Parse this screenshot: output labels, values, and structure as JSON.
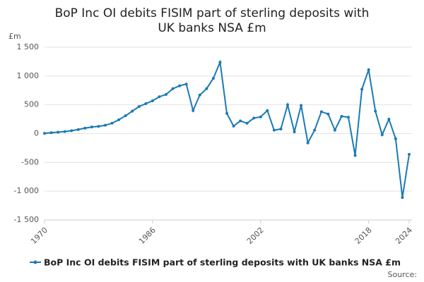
{
  "chart_data": {
    "type": "line",
    "title": "BoP Inc OI debits FISIM part of sterling deposits with UK banks NSA £m",
    "y_label": "£m",
    "source": "Source:",
    "x": [
      1970,
      1971,
      1972,
      1973,
      1974,
      1975,
      1976,
      1977,
      1978,
      1979,
      1980,
      1981,
      1982,
      1983,
      1984,
      1985,
      1986,
      1987,
      1988,
      1989,
      1990,
      1991,
      1992,
      1993,
      1994,
      1995,
      1996,
      1997,
      1998,
      1999,
      2000,
      2001,
      2002,
      2003,
      2004,
      2005,
      2006,
      2007,
      2008,
      2009,
      2010,
      2011,
      2012,
      2013,
      2014,
      2015,
      2016,
      2017,
      2018,
      2019,
      2020,
      2021,
      2022,
      2023,
      2024
    ],
    "series": [
      {
        "name": "BoP Inc OI debits FISIM part of sterling deposits with UK banks NSA £m",
        "color": "#1a7ab5",
        "values": [
          5,
          15,
          25,
          35,
          50,
          70,
          95,
          115,
          125,
          145,
          180,
          240,
          310,
          390,
          470,
          520,
          570,
          640,
          680,
          780,
          830,
          860,
          400,
          670,
          780,
          960,
          1240,
          350,
          130,
          220,
          180,
          270,
          290,
          400,
          60,
          80,
          500,
          30,
          490,
          -160,
          60,
          380,
          340,
          60,
          300,
          285,
          -380,
          770,
          1110,
          390,
          -20,
          250,
          -90,
          -1110,
          -360
        ]
      }
    ],
    "xlim": [
      1970,
      2024
    ],
    "xticks": [
      1970,
      1986,
      2002,
      2018,
      2024
    ],
    "ylim": [
      -1500,
      1500
    ],
    "yticks": [
      {
        "value": -1500,
        "label": "-1 500"
      },
      {
        "value": -1000,
        "label": "-1 000"
      },
      -500,
      0,
      500,
      {
        "value": 1000,
        "label": "1 000"
      },
      {
        "value": 1500,
        "label": "1 500"
      }
    ],
    "grid": true
  }
}
